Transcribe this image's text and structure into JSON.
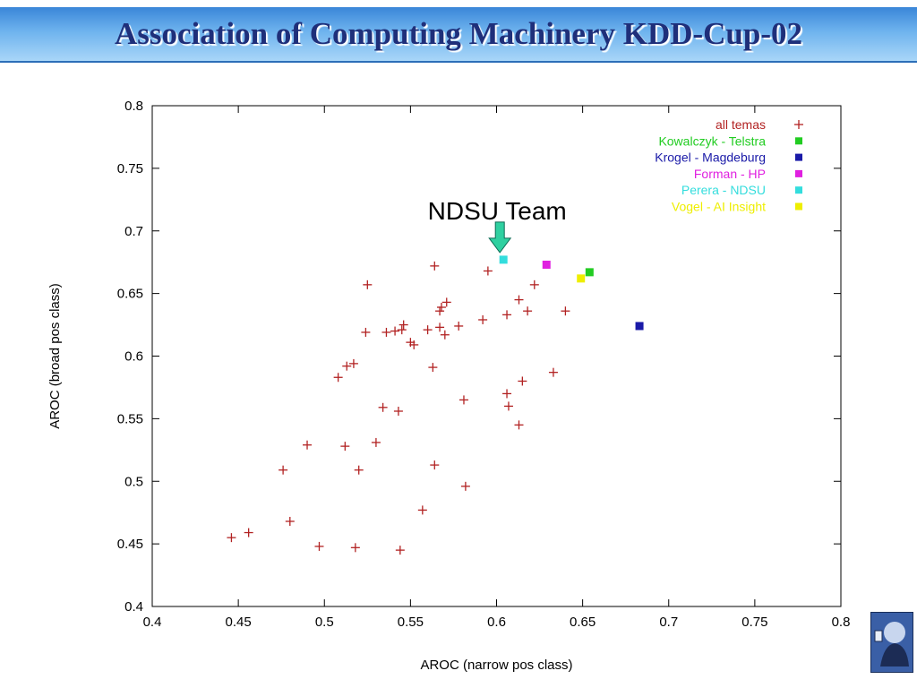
{
  "slide": {
    "title": "Association of Computing Machinery KDD-Cup-02"
  },
  "chart_data": {
    "type": "scatter",
    "xlabel": "AROC (narrow pos class)",
    "ylabel": "AROC (broad pos class)",
    "xlim": [
      0.4,
      0.8
    ],
    "ylim": [
      0.4,
      0.8
    ],
    "xticks": [
      "0.4",
      "0.45",
      "0.5",
      "0.55",
      "0.6",
      "0.65",
      "0.7",
      "0.75",
      "0.8"
    ],
    "yticks": [
      "0.4",
      "0.45",
      "0.5",
      "0.55",
      "0.6",
      "0.65",
      "0.7",
      "0.75",
      "0.8"
    ],
    "grid": false,
    "legend_position": "top-right",
    "series": [
      {
        "name": "all temas",
        "marker": "plus",
        "color": "#b22222",
        "x": [
          0.446,
          0.456,
          0.48,
          0.497,
          0.518,
          0.544,
          0.476,
          0.49,
          0.512,
          0.52,
          0.53,
          0.557,
          0.564,
          0.582,
          0.534,
          0.543,
          0.508,
          0.513,
          0.517,
          0.524,
          0.536,
          0.541,
          0.545,
          0.546,
          0.55,
          0.552,
          0.525,
          0.563,
          0.56,
          0.567,
          0.567,
          0.568,
          0.57,
          0.571,
          0.564,
          0.578,
          0.581,
          0.592,
          0.595,
          0.606,
          0.606,
          0.607,
          0.613,
          0.613,
          0.615,
          0.618,
          0.622,
          0.633,
          0.64
        ],
        "y": [
          0.455,
          0.459,
          0.468,
          0.448,
          0.447,
          0.445,
          0.509,
          0.529,
          0.528,
          0.509,
          0.531,
          0.477,
          0.513,
          0.496,
          0.559,
          0.556,
          0.583,
          0.592,
          0.594,
          0.619,
          0.619,
          0.62,
          0.621,
          0.625,
          0.611,
          0.609,
          0.657,
          0.591,
          0.621,
          0.623,
          0.636,
          0.639,
          0.617,
          0.643,
          0.672,
          0.624,
          0.565,
          0.629,
          0.668,
          0.633,
          0.57,
          0.56,
          0.645,
          0.545,
          0.58,
          0.636,
          0.657,
          0.587,
          0.636
        ]
      },
      {
        "name": "Kowalczyk - Telstra",
        "marker": "square",
        "color": "#22cc22",
        "x": [
          0.654
        ],
        "y": [
          0.667
        ]
      },
      {
        "name": "Krogel - Magdeburg",
        "marker": "square",
        "color": "#1a1aa8",
        "x": [
          0.683
        ],
        "y": [
          0.624
        ]
      },
      {
        "name": "Forman - HP",
        "marker": "square",
        "color": "#e020e0",
        "x": [
          0.629
        ],
        "y": [
          0.673
        ]
      },
      {
        "name": "Perera - NDSU",
        "marker": "square",
        "color": "#33dddd",
        "x": [
          0.604
        ],
        "y": [
          0.677
        ]
      },
      {
        "name": "Vogel - AI Insight",
        "marker": "square",
        "color": "#eeee00",
        "x": [
          0.649
        ],
        "y": [
          0.662
        ]
      }
    ],
    "annotations": [
      {
        "text": "NDSU Team",
        "points_to": [
          0.604,
          0.677
        ],
        "arrow_color": "#2fd0a0"
      }
    ]
  }
}
